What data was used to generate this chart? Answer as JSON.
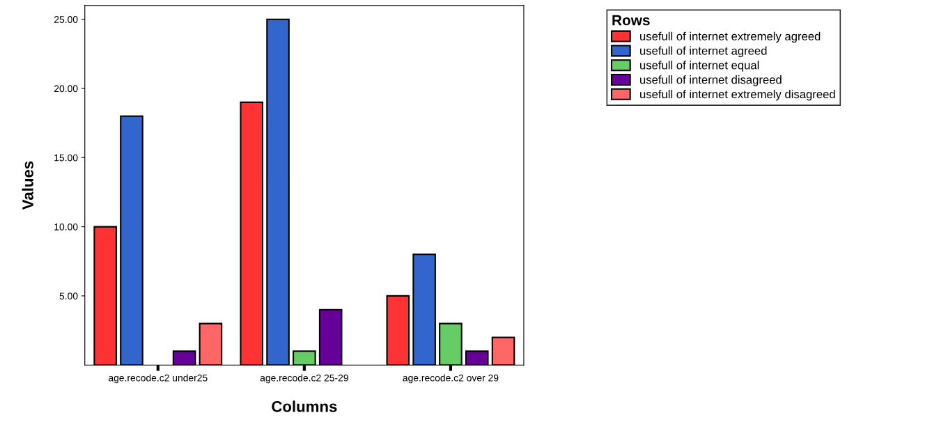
{
  "chart_data": {
    "type": "bar",
    "xlabel": "Columns",
    "ylabel": "Values",
    "legend_title": "Rows",
    "categories": [
      "age.recode.c2 under25",
      "age.recode.c2 25-29",
      "age.recode.c2 over 29"
    ],
    "series": [
      {
        "name": "usefull of internet extremely agreed",
        "color": "#ff3333",
        "values": [
          10,
          19,
          5
        ]
      },
      {
        "name": "usefull of internet agreed",
        "color": "#3366cc",
        "values": [
          18,
          25,
          8
        ]
      },
      {
        "name": "usefull of internet equal",
        "color": "#66cc66",
        "values": [
          null,
          1,
          3
        ]
      },
      {
        "name": "usefull of internet disagreed",
        "color": "#660099",
        "values": [
          1,
          4,
          1
        ]
      },
      {
        "name": "usefull of internet extremely disagreed",
        "color": "#ff6666",
        "values": [
          3,
          null,
          2
        ]
      }
    ],
    "ylim": [
      0,
      26
    ],
    "yticks": [
      {
        "value": 5,
        "label": "5.00"
      },
      {
        "value": 10,
        "label": "10.00"
      },
      {
        "value": 15,
        "label": "15.00"
      },
      {
        "value": 20,
        "label": "20.00"
      },
      {
        "value": 25,
        "label": "25.00"
      }
    ],
    "legend": "top right",
    "grid": false
  }
}
